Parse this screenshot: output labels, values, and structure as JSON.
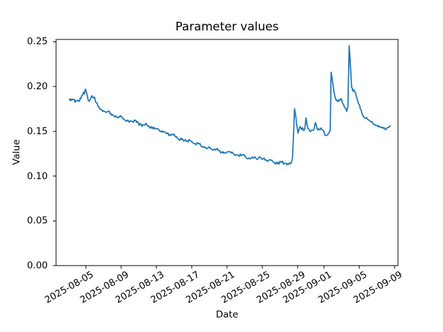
{
  "figure": {
    "title": "Parameter values",
    "xlabel": "Date",
    "ylabel": "Value"
  },
  "chart_data": {
    "type": "line",
    "title": "Parameter values",
    "xlabel": "Date",
    "ylabel": "Value",
    "legend": "none",
    "grid": false,
    "line_color": "#1f77b4",
    "line_width": 1.8,
    "x_unit": "days since 2025-08-01 (e.g. 4 = 2025-08-05)",
    "xlim": [
      0.63,
      39.38
    ],
    "ylim": [
      0,
      0.2527
    ],
    "yticks": [
      {
        "value": 0.0,
        "label": "0.00"
      },
      {
        "value": 0.05,
        "label": "0.05"
      },
      {
        "value": 0.1,
        "label": "0.10"
      },
      {
        "value": 0.15,
        "label": "0.15"
      },
      {
        "value": 0.2,
        "label": "0.20"
      },
      {
        "value": 0.25,
        "label": "0.25"
      }
    ],
    "xticks": [
      {
        "pos": 4,
        "label": "2025-08-05"
      },
      {
        "pos": 8,
        "label": "2025-08-09"
      },
      {
        "pos": 12,
        "label": "2025-08-13"
      },
      {
        "pos": 16,
        "label": "2025-08-17"
      },
      {
        "pos": 20,
        "label": "2025-08-21"
      },
      {
        "pos": 24,
        "label": "2025-08-25"
      },
      {
        "pos": 28,
        "label": "2025-08-29"
      },
      {
        "pos": 31,
        "label": "2025-09-01"
      },
      {
        "pos": 35,
        "label": "2025-09-05"
      },
      {
        "pos": 39,
        "label": "2025-09-09"
      }
    ],
    "points": [
      [
        2.15,
        0.1862
      ],
      [
        2.4,
        0.1846
      ],
      [
        2.62,
        0.1855
      ],
      [
        2.8,
        0.1824
      ],
      [
        3.0,
        0.1842
      ],
      [
        3.2,
        0.1836
      ],
      [
        3.45,
        0.1868
      ],
      [
        3.62,
        0.1905
      ],
      [
        3.75,
        0.1938
      ],
      [
        3.84,
        0.1918
      ],
      [
        3.95,
        0.1972
      ],
      [
        4.15,
        0.1905
      ],
      [
        4.3,
        0.184
      ],
      [
        4.5,
        0.1856
      ],
      [
        4.7,
        0.1898
      ],
      [
        4.95,
        0.1884
      ],
      [
        5.2,
        0.182
      ],
      [
        5.5,
        0.1772
      ],
      [
        5.8,
        0.1742
      ],
      [
        6.1,
        0.1722
      ],
      [
        6.35,
        0.1712
      ],
      [
        6.6,
        0.1726
      ],
      [
        6.85,
        0.17
      ],
      [
        7.1,
        0.1684
      ],
      [
        7.4,
        0.1672
      ],
      [
        7.62,
        0.1652
      ],
      [
        7.85,
        0.166
      ],
      [
        8.0,
        0.1668
      ],
      [
        8.2,
        0.164
      ],
      [
        8.4,
        0.1628
      ],
      [
        8.6,
        0.1612
      ],
      [
        8.8,
        0.1622
      ],
      [
        9.0,
        0.1614
      ],
      [
        9.2,
        0.161
      ],
      [
        9.4,
        0.16
      ],
      [
        9.57,
        0.1622
      ],
      [
        9.75,
        0.16
      ],
      [
        9.96,
        0.1588
      ],
      [
        10.2,
        0.1576
      ],
      [
        10.45,
        0.157
      ],
      [
        10.74,
        0.158
      ],
      [
        11.0,
        0.156
      ],
      [
        11.2,
        0.1548
      ],
      [
        11.5,
        0.1536
      ],
      [
        11.75,
        0.1542
      ],
      [
        12.0,
        0.1528
      ],
      [
        12.3,
        0.1518
      ],
      [
        12.6,
        0.1505
      ],
      [
        12.9,
        0.1496
      ],
      [
        13.2,
        0.1477
      ],
      [
        13.5,
        0.1466
      ],
      [
        13.8,
        0.147
      ],
      [
        14.1,
        0.1448
      ],
      [
        14.4,
        0.142
      ],
      [
        14.7,
        0.1408
      ],
      [
        14.95,
        0.1416
      ],
      [
        15.2,
        0.14
      ],
      [
        15.5,
        0.1392
      ],
      [
        15.8,
        0.1398
      ],
      [
        16.1,
        0.1378
      ],
      [
        16.4,
        0.1362
      ],
      [
        16.7,
        0.137
      ],
      [
        17.0,
        0.1352
      ],
      [
        17.3,
        0.1332
      ],
      [
        17.6,
        0.1316
      ],
      [
        17.9,
        0.1324
      ],
      [
        18.2,
        0.1306
      ],
      [
        18.5,
        0.1293
      ],
      [
        18.8,
        0.1298
      ],
      [
        19.1,
        0.1288
      ],
      [
        19.37,
        0.1267
      ],
      [
        19.7,
        0.1258
      ],
      [
        20.0,
        0.127
      ],
      [
        20.2,
        0.1273
      ],
      [
        20.5,
        0.1258
      ],
      [
        20.8,
        0.1245
      ],
      [
        21.0,
        0.1238
      ],
      [
        21.3,
        0.1229
      ],
      [
        21.7,
        0.1236
      ],
      [
        22.1,
        0.1215
      ],
      [
        22.5,
        0.1203
      ],
      [
        22.9,
        0.1211
      ],
      [
        23.3,
        0.1195
      ],
      [
        23.7,
        0.1215
      ],
      [
        24.1,
        0.1195
      ],
      [
        24.5,
        0.1177
      ],
      [
        24.9,
        0.1185
      ],
      [
        25.3,
        0.1151
      ],
      [
        25.7,
        0.1138
      ],
      [
        26.1,
        0.1159
      ],
      [
        26.5,
        0.1144
      ],
      [
        26.9,
        0.1138
      ],
      [
        27.1,
        0.1148
      ],
      [
        27.3,
        0.1152
      ],
      [
        27.42,
        0.12
      ],
      [
        27.55,
        0.148
      ],
      [
        27.65,
        0.1754
      ],
      [
        27.78,
        0.168
      ],
      [
        27.9,
        0.1575
      ],
      [
        28.05,
        0.148
      ],
      [
        28.25,
        0.1548
      ],
      [
        28.4,
        0.1528
      ],
      [
        28.55,
        0.154
      ],
      [
        28.7,
        0.1508
      ],
      [
        28.82,
        0.1528
      ],
      [
        28.95,
        0.165
      ],
      [
        29.1,
        0.156
      ],
      [
        29.3,
        0.1525
      ],
      [
        29.5,
        0.15
      ],
      [
        29.7,
        0.1512
      ],
      [
        29.88,
        0.153
      ],
      [
        30.02,
        0.1598
      ],
      [
        30.22,
        0.1528
      ],
      [
        30.45,
        0.1522
      ],
      [
        30.65,
        0.1538
      ],
      [
        30.85,
        0.1515
      ],
      [
        31.05,
        0.1472
      ],
      [
        31.2,
        0.1455
      ],
      [
        31.4,
        0.1462
      ],
      [
        31.58,
        0.1488
      ],
      [
        31.7,
        0.1512
      ],
      [
        31.8,
        0.2161
      ],
      [
        31.9,
        0.21
      ],
      [
        32.0,
        0.203
      ],
      [
        32.12,
        0.194
      ],
      [
        32.25,
        0.188
      ],
      [
        32.38,
        0.1845
      ],
      [
        32.58,
        0.1832
      ],
      [
        32.78,
        0.1842
      ],
      [
        33.0,
        0.1855
      ],
      [
        33.2,
        0.18
      ],
      [
        33.38,
        0.1762
      ],
      [
        33.56,
        0.1723
      ],
      [
        33.7,
        0.177
      ],
      [
        33.85,
        0.2458
      ],
      [
        33.97,
        0.227
      ],
      [
        34.12,
        0.1994
      ],
      [
        34.27,
        0.1948
      ],
      [
        34.44,
        0.1955
      ],
      [
        34.58,
        0.193
      ],
      [
        34.74,
        0.187
      ],
      [
        34.92,
        0.1808
      ],
      [
        35.12,
        0.1748
      ],
      [
        35.32,
        0.1692
      ],
      [
        35.52,
        0.166
      ],
      [
        35.72,
        0.1646
      ],
      [
        35.92,
        0.1632
      ],
      [
        36.12,
        0.162
      ],
      [
        36.32,
        0.1605
      ],
      [
        36.52,
        0.1592
      ],
      [
        36.72,
        0.1578
      ],
      [
        36.92,
        0.1563
      ],
      [
        37.12,
        0.1553
      ],
      [
        37.32,
        0.1546
      ],
      [
        37.52,
        0.154
      ],
      [
        37.72,
        0.1532
      ],
      [
        37.92,
        0.1522
      ],
      [
        38.12,
        0.1538
      ],
      [
        38.32,
        0.1542
      ],
      [
        38.5,
        0.156
      ]
    ]
  }
}
